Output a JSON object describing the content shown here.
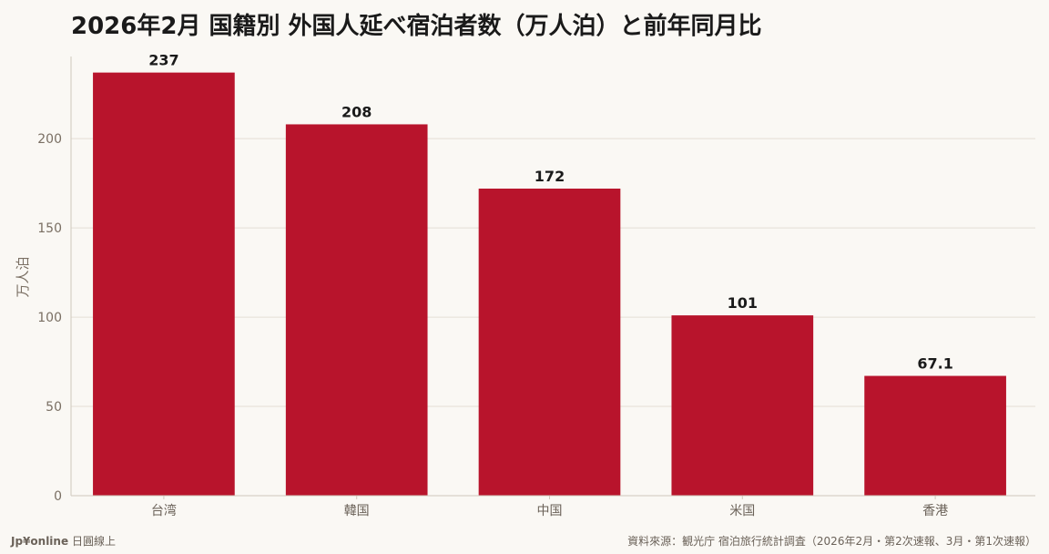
{
  "page": {
    "brand": "Jp¥online",
    "brand_sub": "日圓線上",
    "source": "資料來源：観光庁 宿泊旅行統計調査（2026年2月・第2次速報、3月・第1次速報）"
  },
  "chart_data": {
    "type": "bar",
    "title": "2026年2月 国籍別 外国人延べ宿泊者数（万人泊）と前年同月比",
    "xlabel": "",
    "ylabel": "万人泊",
    "categories": [
      "台湾",
      "韓国",
      "中国",
      "米国",
      "香港"
    ],
    "values": [
      237,
      208,
      172,
      101,
      67.1
    ],
    "value_labels": [
      "237",
      "208",
      "172",
      "101",
      "67.1"
    ],
    "ylim": [
      0,
      246
    ],
    "yticks": [
      0,
      50,
      100,
      150,
      200
    ],
    "grid": true,
    "bar_color": "#b8142c",
    "grid_color": "#e4ded5",
    "axis_color": "#cfc8bd"
  }
}
